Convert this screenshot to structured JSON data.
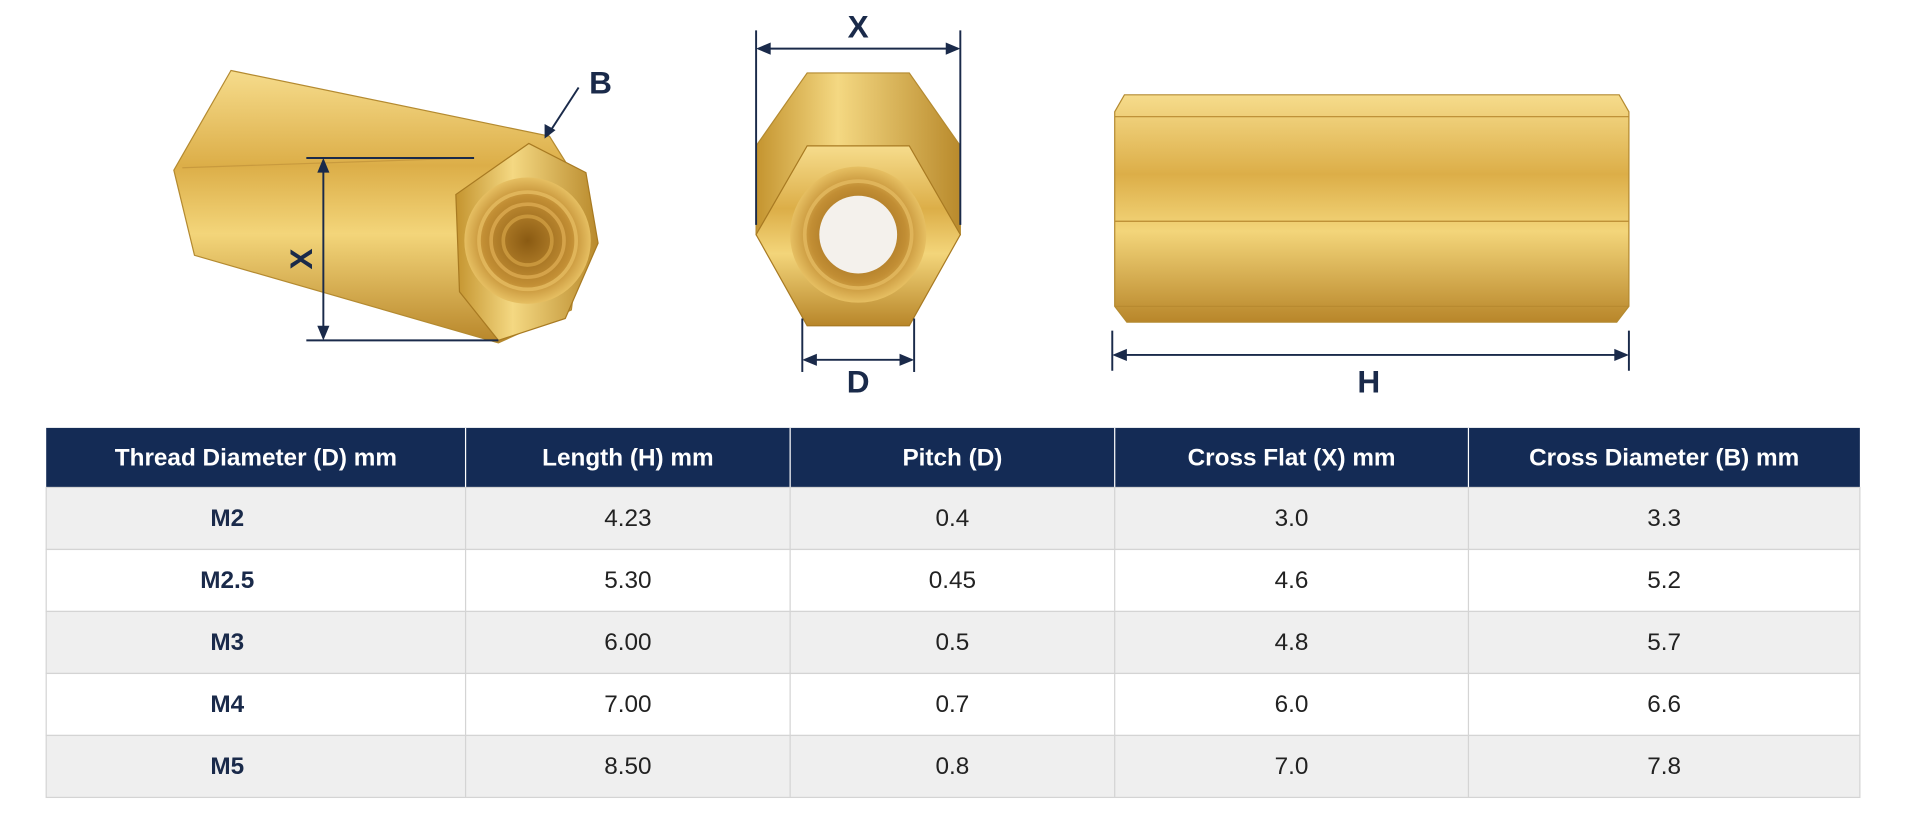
{
  "diagram": {
    "labels": [
      "B",
      "X",
      "X",
      "D",
      "H"
    ]
  },
  "table": {
    "header": [
      "Thread Diameter (D) mm",
      "Length (H) mm",
      "Pitch (D)",
      "Cross Flat (X) mm",
      "Cross Diameter (B) mm"
    ],
    "rows": [
      [
        "M2",
        "4.23",
        "0.4",
        "3.0",
        "3.3"
      ],
      [
        "M2.5",
        "5.30",
        "0.45",
        "4.6",
        "5.2"
      ],
      [
        "M3",
        "6.00",
        "0.5",
        "4.8",
        "5.7"
      ],
      [
        "M4",
        "7.00",
        "0.7",
        "6.0",
        "6.6"
      ],
      [
        "M5",
        "8.50",
        "0.8",
        "7.0",
        "7.8"
      ]
    ]
  }
}
